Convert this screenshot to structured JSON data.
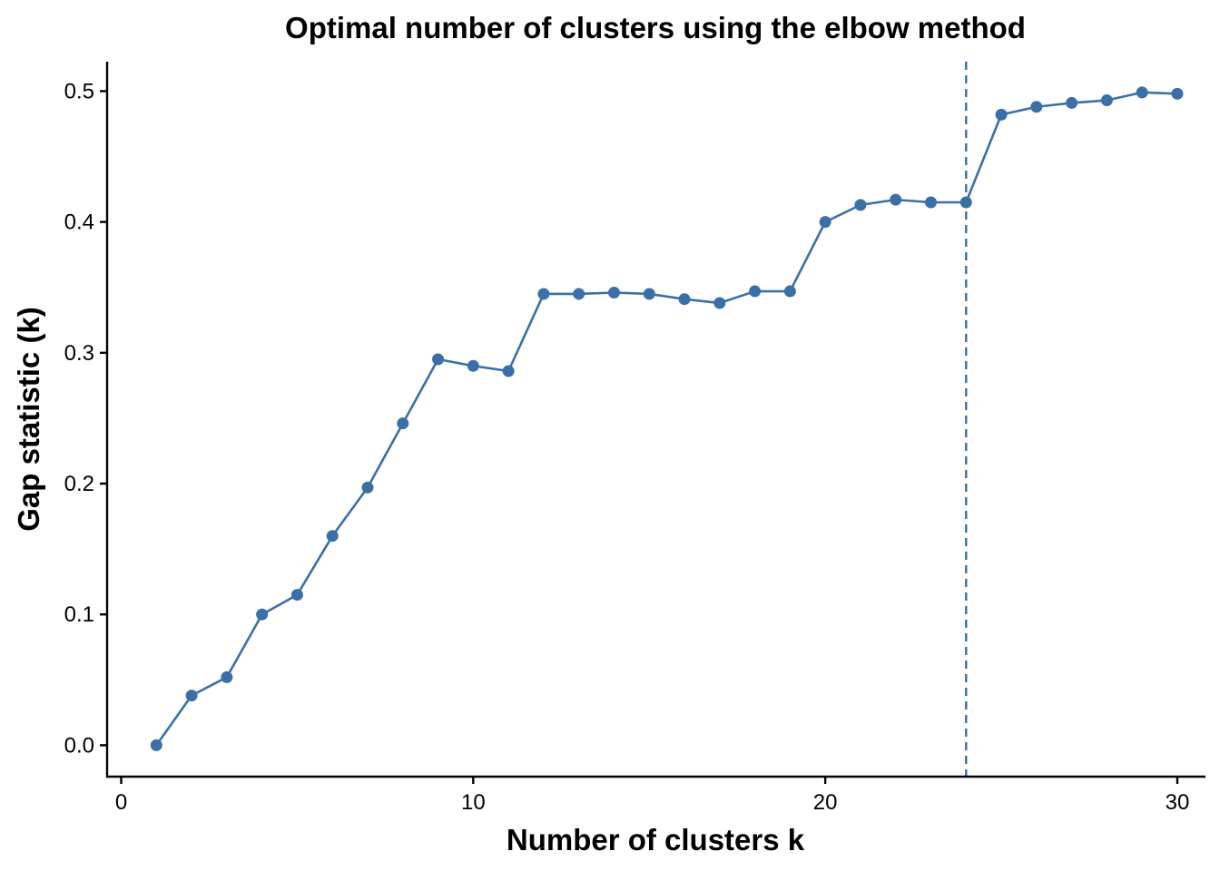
{
  "chart_data": {
    "type": "line",
    "title": "Optimal number of clusters using the elbow method",
    "xlabel": "Number of clusters k",
    "ylabel": "Gap statistic (k)",
    "xlim": [
      -0.4,
      30.8
    ],
    "ylim": [
      -0.024,
      0.5225
    ],
    "x_ticks": [
      0,
      10,
      20,
      30
    ],
    "x_tick_labels": [
      "0",
      "10",
      "20",
      "30"
    ],
    "y_ticks": [
      0.0,
      0.1,
      0.2,
      0.3,
      0.4,
      0.5
    ],
    "y_tick_labels": [
      "0.0",
      "0.1",
      "0.2",
      "0.3",
      "0.4",
      "0.5"
    ],
    "grid": false,
    "legend": "none",
    "series": [
      {
        "x": [
          1,
          2,
          3,
          4,
          5,
          6,
          7,
          8,
          9,
          10,
          11,
          12,
          13,
          14,
          15,
          16,
          17,
          18,
          19,
          20,
          21,
          22,
          23,
          24,
          25,
          26,
          27,
          28,
          29,
          30
        ],
        "values": [
          0.0,
          0.038,
          0.052,
          0.1,
          0.115,
          0.16,
          0.197,
          0.246,
          0.295,
          0.29,
          0.286,
          0.345,
          0.345,
          0.346,
          0.345,
          0.341,
          0.338,
          0.347,
          0.347,
          0.4,
          0.413,
          0.417,
          0.415,
          0.415,
          0.482,
          0.488,
          0.491,
          0.493,
          0.499,
          0.498
        ],
        "color": "#3a6fa8"
      }
    ],
    "reference_line": {
      "orientation": "vertical",
      "x": 24,
      "style": "dashed",
      "color": "#3a6fa8"
    }
  }
}
